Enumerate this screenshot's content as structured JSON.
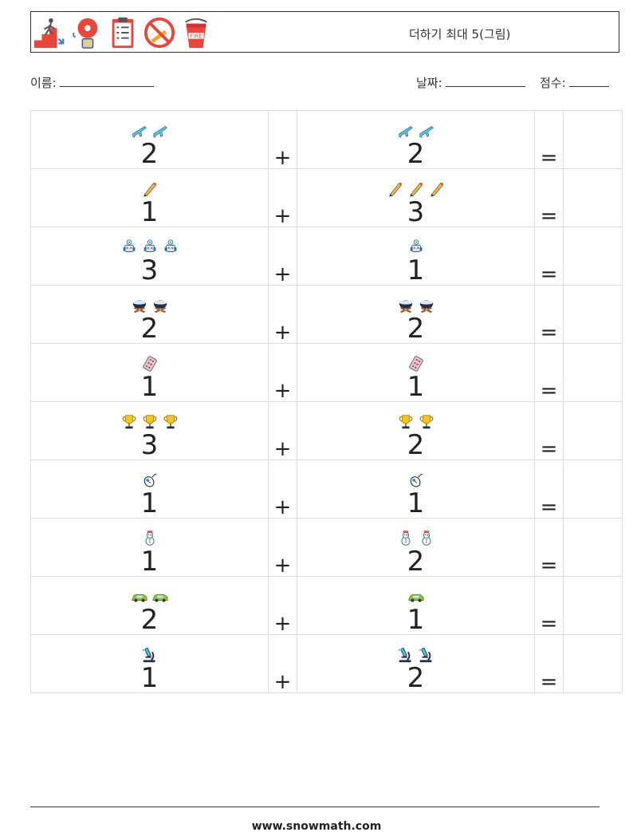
{
  "header": {
    "title": "더하기 최대 5(그림)",
    "icons": [
      "emergency-exit-stairs-icon",
      "fire-alarm-bell-icon",
      "checklist-clipboard-icon",
      "no-smoking-icon",
      "fire-bucket-icon"
    ],
    "fire_bucket_text": "FIRE"
  },
  "info": {
    "name_label": "이름:",
    "date_label": "날짜:",
    "score_label": "점수:"
  },
  "problems": [
    {
      "left": {
        "value": "2",
        "icon": "airplane"
      },
      "op": "+",
      "right": {
        "value": "2",
        "icon": "airplane"
      },
      "eq": "="
    },
    {
      "left": {
        "value": "1",
        "icon": "pencil"
      },
      "op": "+",
      "right": {
        "value": "3",
        "icon": "pencil"
      },
      "eq": "="
    },
    {
      "left": {
        "value": "3",
        "icon": "robot"
      },
      "op": "+",
      "right": {
        "value": "1",
        "icon": "robot"
      },
      "eq": "="
    },
    {
      "left": {
        "value": "2",
        "icon": "campfire-pot"
      },
      "op": "+",
      "right": {
        "value": "2",
        "icon": "campfire-pot"
      },
      "eq": "="
    },
    {
      "left": {
        "value": "1",
        "icon": "pill-pack"
      },
      "op": "+",
      "right": {
        "value": "1",
        "icon": "pill-pack"
      },
      "eq": "="
    },
    {
      "left": {
        "value": "3",
        "icon": "trophy"
      },
      "op": "+",
      "right": {
        "value": "2",
        "icon": "trophy"
      },
      "eq": "="
    },
    {
      "left": {
        "value": "1",
        "icon": "mouse"
      },
      "op": "+",
      "right": {
        "value": "1",
        "icon": "mouse"
      },
      "eq": "="
    },
    {
      "left": {
        "value": "1",
        "icon": "snowman"
      },
      "op": "+",
      "right": {
        "value": "2",
        "icon": "snowman"
      },
      "eq": "="
    },
    {
      "left": {
        "value": "2",
        "icon": "car"
      },
      "op": "+",
      "right": {
        "value": "1",
        "icon": "car"
      },
      "eq": "="
    },
    {
      "left": {
        "value": "1",
        "icon": "microscope"
      },
      "op": "+",
      "right": {
        "value": "2",
        "icon": "microscope"
      },
      "eq": "="
    }
  ],
  "footer": {
    "url": "www.snowmath.com"
  }
}
